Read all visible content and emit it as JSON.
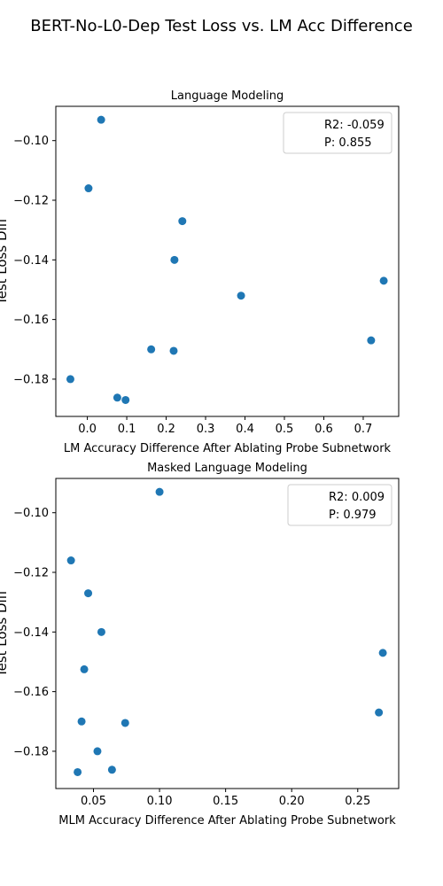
{
  "figure": {
    "suptitle": "BERT-No-L0-Dep Test Loss vs. LM Acc Difference"
  },
  "chart_data": [
    {
      "type": "scatter",
      "title": "Language Modeling",
      "xlabel": "LM Accuracy Difference After Ablating Probe Subnetwork",
      "ylabel": "Test Loss Diff",
      "xlim": [
        -0.08,
        0.79
      ],
      "ylim": [
        -0.1925,
        -0.0885
      ],
      "xticks": [
        0.0,
        0.1,
        0.2,
        0.3,
        0.4,
        0.5,
        0.6,
        0.7
      ],
      "xtick_labels": [
        "0.0",
        "0.1",
        "0.2",
        "0.3",
        "0.4",
        "0.5",
        "0.6",
        "0.7"
      ],
      "yticks": [
        -0.18,
        -0.16,
        -0.14,
        -0.12,
        -0.1
      ],
      "ytick_labels": [
        "−0.18",
        "−0.16",
        "−0.14",
        "−0.12",
        "−0.10"
      ],
      "legend": {
        "position": "top-right",
        "entries": [
          "R2: -0.059",
          "P: 0.855"
        ]
      },
      "marker_color": "#1f77b4",
      "points": [
        {
          "x": 0.035,
          "y": -0.093
        },
        {
          "x": 0.003,
          "y": -0.116
        },
        {
          "x": 0.241,
          "y": -0.127
        },
        {
          "x": 0.221,
          "y": -0.14
        },
        {
          "x": 0.39,
          "y": -0.152
        },
        {
          "x": 0.752,
          "y": -0.147
        },
        {
          "x": 0.72,
          "y": -0.167
        },
        {
          "x": 0.162,
          "y": -0.17
        },
        {
          "x": 0.219,
          "y": -0.1705
        },
        {
          "x": -0.043,
          "y": -0.18
        },
        {
          "x": 0.076,
          "y": -0.1862
        },
        {
          "x": 0.097,
          "y": -0.187
        }
      ]
    },
    {
      "type": "scatter",
      "title": "Masked Language Modeling",
      "xlabel": "MLM Accuracy Difference After Ablating Probe Subnetwork",
      "ylabel": "Test Loss Diff",
      "xlim": [
        0.0215,
        0.281
      ],
      "ylim": [
        -0.1925,
        -0.0885
      ],
      "xticks": [
        0.05,
        0.1,
        0.15,
        0.2,
        0.25
      ],
      "xtick_labels": [
        "0.05",
        "0.10",
        "0.15",
        "0.20",
        "0.25"
      ],
      "yticks": [
        -0.18,
        -0.16,
        -0.14,
        -0.12,
        -0.1
      ],
      "ytick_labels": [
        "−0.18",
        "−0.16",
        "−0.14",
        "−0.12",
        "−0.10"
      ],
      "legend": {
        "position": "top-right",
        "entries": [
          "R2: 0.009",
          "P: 0.979"
        ]
      },
      "marker_color": "#1f77b4",
      "points": [
        {
          "x": 0.1,
          "y": -0.093
        },
        {
          "x": 0.033,
          "y": -0.116
        },
        {
          "x": 0.046,
          "y": -0.127
        },
        {
          "x": 0.056,
          "y": -0.14
        },
        {
          "x": 0.043,
          "y": -0.1525
        },
        {
          "x": 0.269,
          "y": -0.147
        },
        {
          "x": 0.266,
          "y": -0.167
        },
        {
          "x": 0.041,
          "y": -0.17
        },
        {
          "x": 0.074,
          "y": -0.1705
        },
        {
          "x": 0.053,
          "y": -0.18
        },
        {
          "x": 0.064,
          "y": -0.1862
        },
        {
          "x": 0.038,
          "y": -0.187
        }
      ]
    }
  ]
}
